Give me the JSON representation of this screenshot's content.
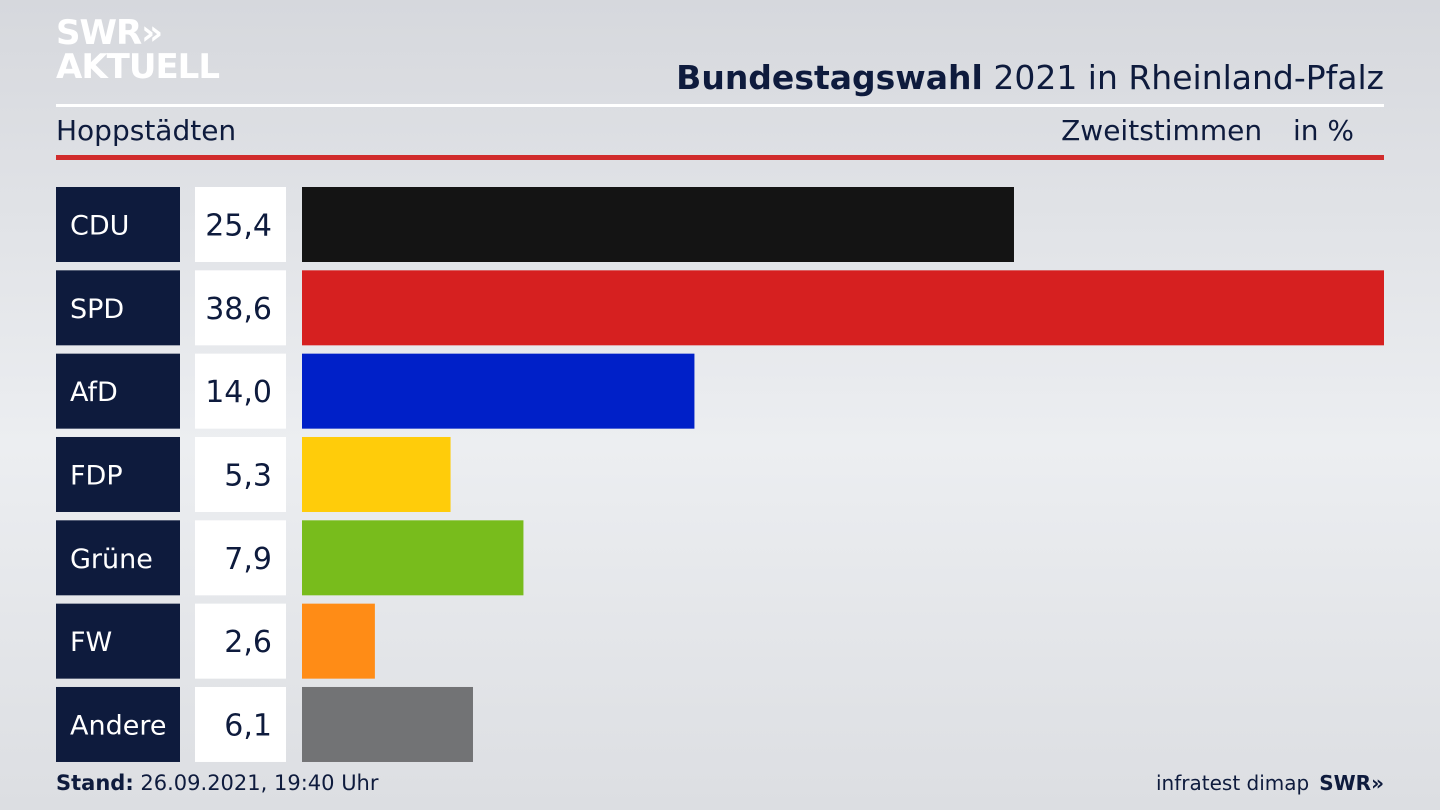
{
  "header": {
    "logo_line1": "SWR»",
    "logo_line2": "AKTUELL",
    "title_bold": "Bundestagswahl",
    "title_rest": "2021 in Rheinland-Pfalz",
    "location": "Hoppstädten",
    "vote_type": "Zweitstimmen",
    "unit": "in %"
  },
  "chart_data": {
    "type": "bar",
    "orientation": "horizontal",
    "categories": [
      "CDU",
      "SPD",
      "AfD",
      "FDP",
      "Grüne",
      "FW",
      "Andere"
    ],
    "values": [
      25.4,
      38.6,
      14.0,
      5.3,
      7.9,
      2.6,
      6.1
    ],
    "value_labels": [
      "25,4",
      "38,6",
      "14,0",
      "5,3",
      "7,9",
      "2,6",
      "6,1"
    ],
    "colors": [
      "#141414",
      "#d62020",
      "#0020c8",
      "#ffcc0a",
      "#78bc1c",
      "#ff8c16",
      "#727375"
    ],
    "xlim": [
      0,
      38.6
    ]
  },
  "footer": {
    "stand_label": "Stand:",
    "stand_value": "26.09.2021, 19:40 Uhr",
    "source": "infratest dimap",
    "brand": "SWR»"
  },
  "colors": {
    "label_box": "#0e1b3d",
    "value_box": "#ffffff",
    "accent_red": "#d12c2c",
    "text": "#0e1b3d"
  }
}
